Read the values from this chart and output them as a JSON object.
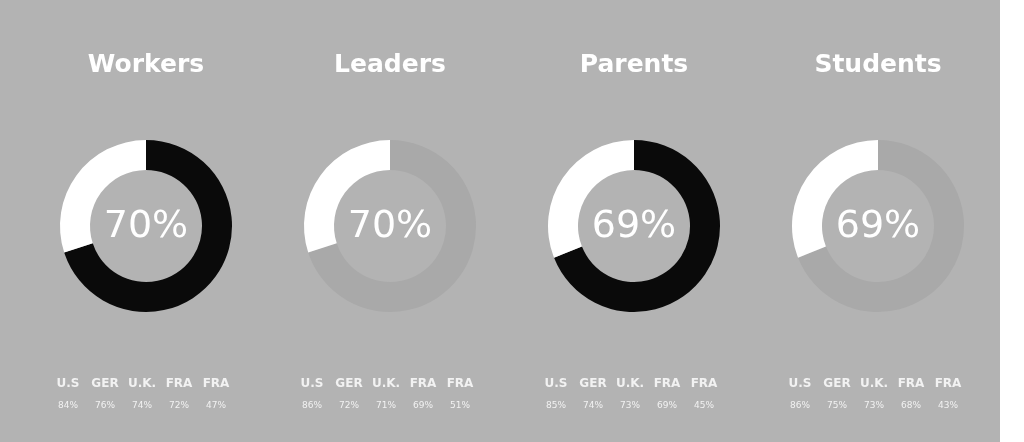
{
  "chart_data": [
    {
      "type": "donut",
      "title": "Workers",
      "categories": [
        null,
        null
      ],
      "values": [
        70,
        30
      ],
      "colors": [
        "#0a0a0a",
        "#ffffff"
      ],
      "annotations": [
        "70%",
        "U.S",
        "84%",
        "GER",
        "76%",
        "U.K.",
        "74%",
        "FRA",
        "72%",
        "FRA",
        "47%"
      ]
    },
    {
      "type": "donut",
      "title": "Leaders",
      "categories": [
        null,
        null
      ],
      "values": [
        70,
        30
      ],
      "colors": [
        "#a9a9a9",
        "#ffffff"
      ],
      "annotations": [
        "70%",
        "U.S",
        "86%",
        "GER",
        "72%",
        "U.K.",
        "71%",
        "FRA",
        "69%",
        "FRA",
        "51%"
      ]
    },
    {
      "type": "donut",
      "title": "Parents",
      "categories": [
        null,
        null
      ],
      "values": [
        69,
        31
      ],
      "colors": [
        "#0a0a0a",
        "#ffffff"
      ],
      "annotations": [
        "69%",
        "U.S",
        "85%",
        "GER",
        "74%",
        "U.K.",
        "73%",
        "FRA",
        "69%",
        "FRA",
        "45%"
      ]
    },
    {
      "type": "donut",
      "title": "Students",
      "categories": [
        null,
        null
      ],
      "values": [
        69,
        31
      ],
      "colors": [
        "#a9a9a9",
        "#ffffff"
      ],
      "annotations": [
        "69%",
        "U.S",
        "86%",
        "GER",
        "75%",
        "U.K.",
        "73%",
        "FRA",
        "68%",
        "FRA",
        "43%"
      ]
    }
  ]
}
